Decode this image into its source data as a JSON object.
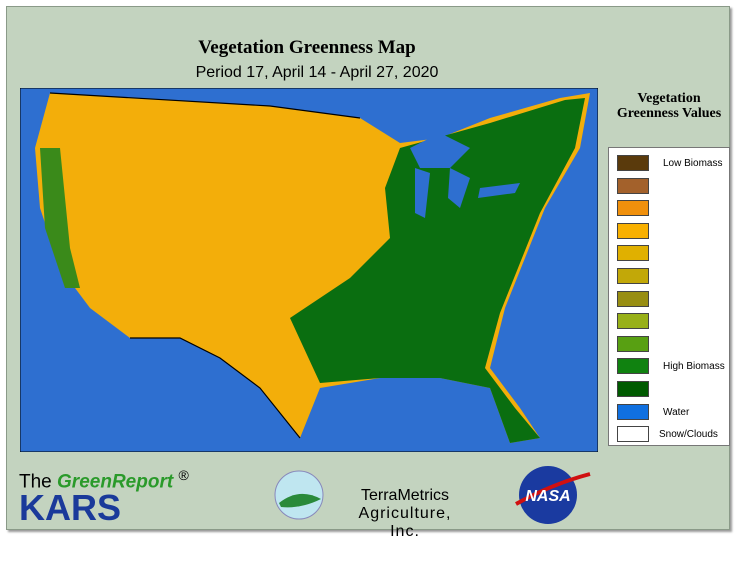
{
  "header": {
    "title": "Vegetation Greenness Map",
    "subtitle": "Period 17, April 14 - April 27, 2020"
  },
  "legend": {
    "title": "Vegetation Greenness Values",
    "items": [
      {
        "color": "#5a3a0c",
        "label": "Low Biomass"
      },
      {
        "color": "#a3612b"
      },
      {
        "color": "#f0900c"
      },
      {
        "color": "#f8b000"
      },
      {
        "color": "#e0b000"
      },
      {
        "color": "#c2a808"
      },
      {
        "color": "#988e12"
      },
      {
        "color": "#98b018"
      },
      {
        "color": "#58a012"
      },
      {
        "color": "#108210",
        "label": "High Biomass"
      },
      {
        "color": "#005a00"
      },
      {
        "color": "#1070e0",
        "label": "Water"
      },
      {
        "color": "#ffffff",
        "label": "Snow/Clouds"
      }
    ]
  },
  "footer": {
    "brand_prefix": "The",
    "brand_name": "GreenReport",
    "brand_mark": "®",
    "brand_sub": "KARS",
    "company_line1": "TerraMetrics",
    "company_line2": "Agriculture, Inc.",
    "agency": "NASA"
  }
}
